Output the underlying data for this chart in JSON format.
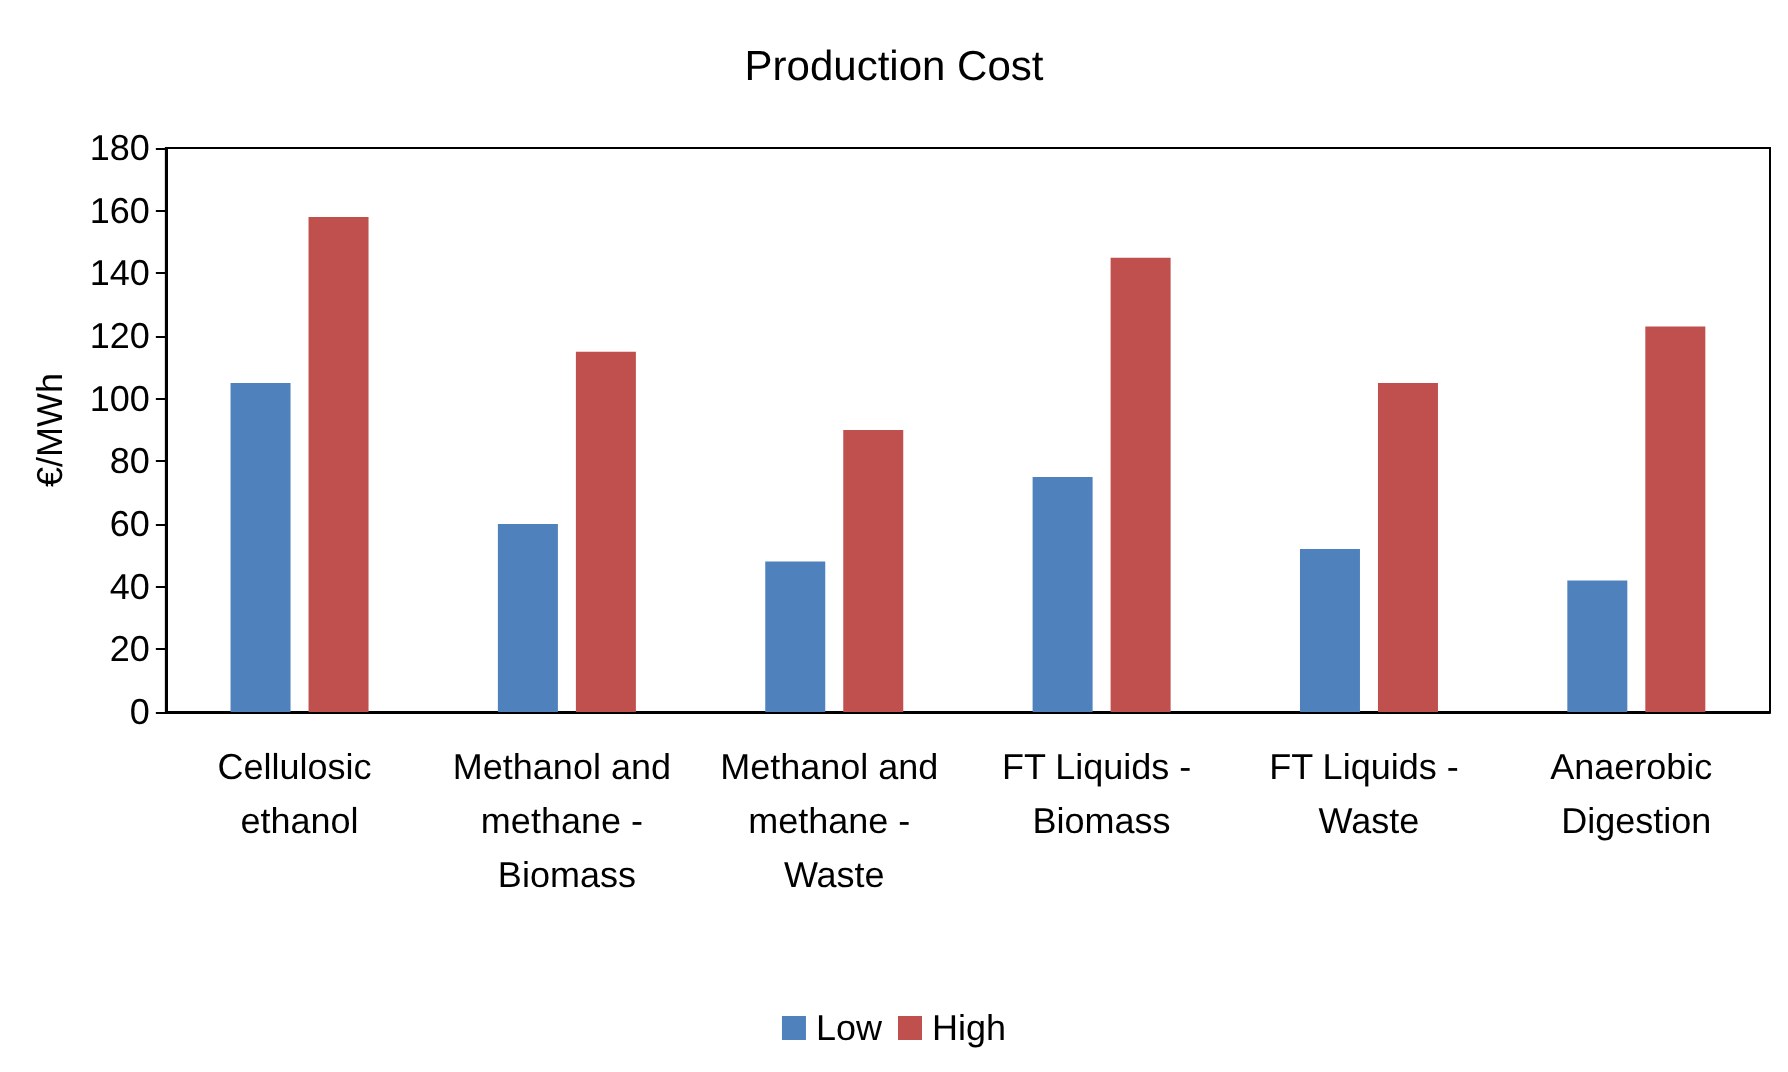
{
  "chart_data": {
    "type": "bar",
    "title": "Production Cost",
    "ylabel": "€/MWh",
    "categories": [
      "Cellulosic ethanol",
      "Methanol and methane - Biomass",
      "Methanol and methane - Waste",
      "FT Liquids - Biomass",
      "FT Liquids - Waste",
      "Anaerobic Digestion"
    ],
    "series": [
      {
        "name": "Low",
        "color": "#4f81bd",
        "values": [
          105,
          60,
          48,
          75,
          52,
          42
        ]
      },
      {
        "name": "High",
        "color": "#c0504d",
        "values": [
          158,
          115,
          90,
          145,
          105,
          123
        ]
      }
    ],
    "ylim": [
      0,
      180
    ],
    "yticks": [
      0,
      20,
      40,
      60,
      80,
      100,
      120,
      140,
      160,
      180
    ],
    "grid": false,
    "legend": "bottom"
  }
}
